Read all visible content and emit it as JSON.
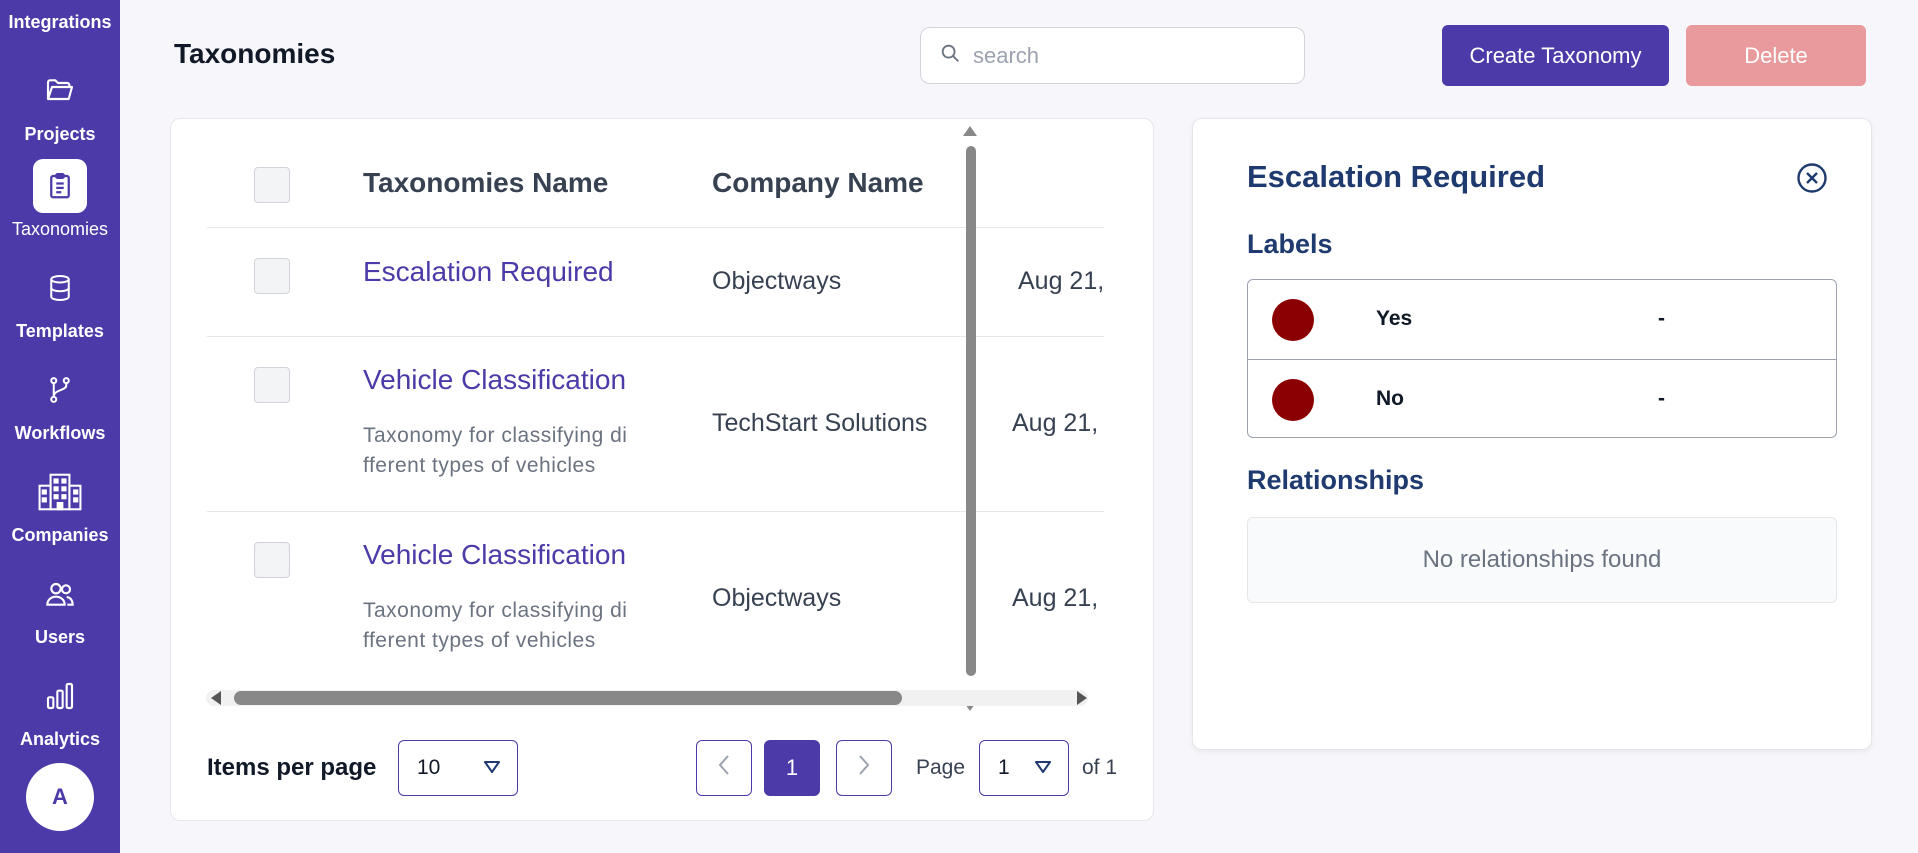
{
  "sidebar": {
    "items": [
      {
        "label": "Integrations",
        "icon": "plug-icon"
      },
      {
        "label": "Projects",
        "icon": "folder-icon"
      },
      {
        "label": "Taxonomies",
        "icon": "clipboard-icon",
        "active": true
      },
      {
        "label": "Templates",
        "icon": "database-icon"
      },
      {
        "label": "Workflows",
        "icon": "git-branch-icon"
      },
      {
        "label": "Companies",
        "icon": "building-icon"
      },
      {
        "label": "Users",
        "icon": "users-icon"
      },
      {
        "label": "Analytics",
        "icon": "bar-chart-icon"
      }
    ],
    "avatar": "A",
    "bg_color": "#4b3aa8"
  },
  "header": {
    "title": "Taxonomies",
    "search_placeholder": "search",
    "create_label": "Create Taxonomy",
    "delete_label": "Delete"
  },
  "table": {
    "columns": [
      "Taxonomies Name",
      "Company Name"
    ],
    "rows": [
      {
        "name": "Escalation Required",
        "description": "",
        "company": "Objectways",
        "date": "Aug 21,"
      },
      {
        "name": "Vehicle Classification",
        "description": "Taxonomy for classifying di fferent types of vehicles",
        "company": "TechStart Solutions",
        "date": "Aug 21,"
      },
      {
        "name": "Vehicle Classification",
        "description": "Taxonomy for classifying di fferent types of vehicles",
        "company": "Objectways",
        "date": "Aug 21,"
      }
    ]
  },
  "pagination": {
    "items_per_page_label": "Items per page",
    "items_per_page": "10",
    "current_page": "1",
    "page_label": "Page",
    "page_select": "1",
    "of_label": "of 1"
  },
  "detail": {
    "title": "Escalation Required",
    "labels_title": "Labels",
    "labels": [
      {
        "name": "Yes",
        "extra": "-",
        "color": "#8b0000"
      },
      {
        "name": "No",
        "extra": "-",
        "color": "#8b0000"
      }
    ],
    "relationships_title": "Relationships",
    "relationships_empty": "No relationships found"
  }
}
